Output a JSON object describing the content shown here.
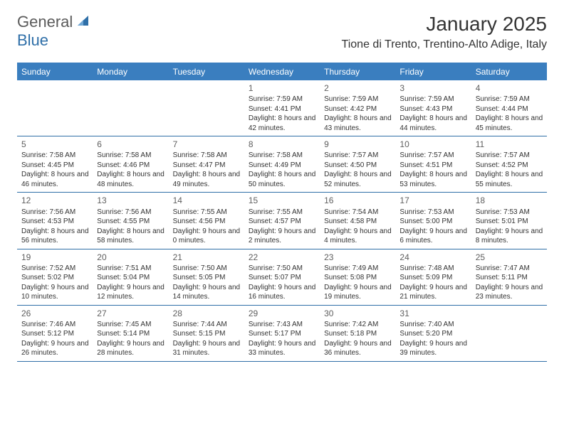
{
  "brand": {
    "part1": "General",
    "part2": "Blue"
  },
  "colors": {
    "brand_gray": "#5a5a5a",
    "brand_blue": "#2f6fa8",
    "header_bg": "#3a7ebf",
    "rule": "#2f6fa8",
    "text": "#333333",
    "daynum": "#5f5f5f",
    "background": "#ffffff"
  },
  "typography": {
    "month_title_pt": 28,
    "location_pt": 16,
    "dow_pt": 12,
    "daynum_pt": 12,
    "body_pt": 10
  },
  "title": "January 2025",
  "location": "Tione di Trento, Trentino-Alto Adige, Italy",
  "dow": [
    "Sunday",
    "Monday",
    "Tuesday",
    "Wednesday",
    "Thursday",
    "Friday",
    "Saturday"
  ],
  "weeks": [
    [
      {
        "blank": true
      },
      {
        "blank": true
      },
      {
        "blank": true
      },
      {
        "n": "1",
        "sr": "7:59 AM",
        "ss": "4:41 PM",
        "dl": "8 hours and 42 minutes."
      },
      {
        "n": "2",
        "sr": "7:59 AM",
        "ss": "4:42 PM",
        "dl": "8 hours and 43 minutes."
      },
      {
        "n": "3",
        "sr": "7:59 AM",
        "ss": "4:43 PM",
        "dl": "8 hours and 44 minutes."
      },
      {
        "n": "4",
        "sr": "7:59 AM",
        "ss": "4:44 PM",
        "dl": "8 hours and 45 minutes."
      }
    ],
    [
      {
        "n": "5",
        "sr": "7:58 AM",
        "ss": "4:45 PM",
        "dl": "8 hours and 46 minutes."
      },
      {
        "n": "6",
        "sr": "7:58 AM",
        "ss": "4:46 PM",
        "dl": "8 hours and 48 minutes."
      },
      {
        "n": "7",
        "sr": "7:58 AM",
        "ss": "4:47 PM",
        "dl": "8 hours and 49 minutes."
      },
      {
        "n": "8",
        "sr": "7:58 AM",
        "ss": "4:49 PM",
        "dl": "8 hours and 50 minutes."
      },
      {
        "n": "9",
        "sr": "7:57 AM",
        "ss": "4:50 PM",
        "dl": "8 hours and 52 minutes."
      },
      {
        "n": "10",
        "sr": "7:57 AM",
        "ss": "4:51 PM",
        "dl": "8 hours and 53 minutes."
      },
      {
        "n": "11",
        "sr": "7:57 AM",
        "ss": "4:52 PM",
        "dl": "8 hours and 55 minutes."
      }
    ],
    [
      {
        "n": "12",
        "sr": "7:56 AM",
        "ss": "4:53 PM",
        "dl": "8 hours and 56 minutes."
      },
      {
        "n": "13",
        "sr": "7:56 AM",
        "ss": "4:55 PM",
        "dl": "8 hours and 58 minutes."
      },
      {
        "n": "14",
        "sr": "7:55 AM",
        "ss": "4:56 PM",
        "dl": "9 hours and 0 minutes."
      },
      {
        "n": "15",
        "sr": "7:55 AM",
        "ss": "4:57 PM",
        "dl": "9 hours and 2 minutes."
      },
      {
        "n": "16",
        "sr": "7:54 AM",
        "ss": "4:58 PM",
        "dl": "9 hours and 4 minutes."
      },
      {
        "n": "17",
        "sr": "7:53 AM",
        "ss": "5:00 PM",
        "dl": "9 hours and 6 minutes."
      },
      {
        "n": "18",
        "sr": "7:53 AM",
        "ss": "5:01 PM",
        "dl": "9 hours and 8 minutes."
      }
    ],
    [
      {
        "n": "19",
        "sr": "7:52 AM",
        "ss": "5:02 PM",
        "dl": "9 hours and 10 minutes."
      },
      {
        "n": "20",
        "sr": "7:51 AM",
        "ss": "5:04 PM",
        "dl": "9 hours and 12 minutes."
      },
      {
        "n": "21",
        "sr": "7:50 AM",
        "ss": "5:05 PM",
        "dl": "9 hours and 14 minutes."
      },
      {
        "n": "22",
        "sr": "7:50 AM",
        "ss": "5:07 PM",
        "dl": "9 hours and 16 minutes."
      },
      {
        "n": "23",
        "sr": "7:49 AM",
        "ss": "5:08 PM",
        "dl": "9 hours and 19 minutes."
      },
      {
        "n": "24",
        "sr": "7:48 AM",
        "ss": "5:09 PM",
        "dl": "9 hours and 21 minutes."
      },
      {
        "n": "25",
        "sr": "7:47 AM",
        "ss": "5:11 PM",
        "dl": "9 hours and 23 minutes."
      }
    ],
    [
      {
        "n": "26",
        "sr": "7:46 AM",
        "ss": "5:12 PM",
        "dl": "9 hours and 26 minutes."
      },
      {
        "n": "27",
        "sr": "7:45 AM",
        "ss": "5:14 PM",
        "dl": "9 hours and 28 minutes."
      },
      {
        "n": "28",
        "sr": "7:44 AM",
        "ss": "5:15 PM",
        "dl": "9 hours and 31 minutes."
      },
      {
        "n": "29",
        "sr": "7:43 AM",
        "ss": "5:17 PM",
        "dl": "9 hours and 33 minutes."
      },
      {
        "n": "30",
        "sr": "7:42 AM",
        "ss": "5:18 PM",
        "dl": "9 hours and 36 minutes."
      },
      {
        "n": "31",
        "sr": "7:40 AM",
        "ss": "5:20 PM",
        "dl": "9 hours and 39 minutes."
      },
      {
        "blank": true
      }
    ]
  ],
  "labels": {
    "sunrise": "Sunrise: ",
    "sunset": "Sunset: ",
    "daylight": "Daylight: "
  }
}
